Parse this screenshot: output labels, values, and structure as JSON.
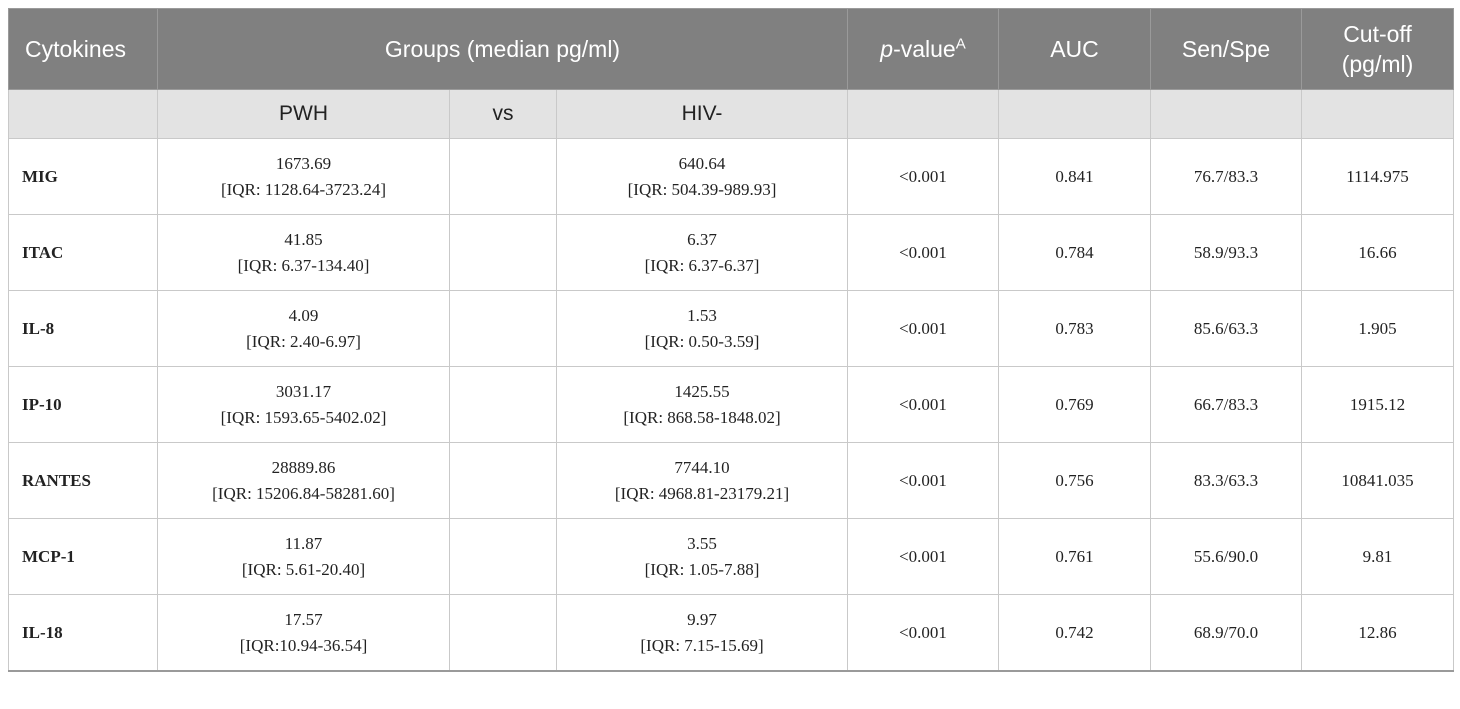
{
  "header": {
    "cytokines": "Cytokines",
    "groups": "Groups (median pg/ml)",
    "pvalue_italic": "p",
    "pvalue_rest": "-value",
    "pvalue_sup": "A",
    "auc": "AUC",
    "senspe": "Sen/Spe",
    "cutoff_line1": "Cut-off",
    "cutoff_line2": "(pg/ml)"
  },
  "subheader": {
    "pwh": "PWH",
    "vs": "vs",
    "hiv": "HIV-"
  },
  "rows": [
    {
      "name": "MIG",
      "pwh_median": "1673.69",
      "pwh_iqr": "[IQR: 1128.64-3723.24]",
      "hiv_median": "640.64",
      "hiv_iqr": "[IQR: 504.39-989.93]",
      "p": "<0.001",
      "auc": "0.841",
      "senspe": "76.7/83.3",
      "cutoff": "1114.975"
    },
    {
      "name": "ITAC",
      "pwh_median": "41.85",
      "pwh_iqr": "[IQR: 6.37-134.40]",
      "hiv_median": "6.37",
      "hiv_iqr": "[IQR: 6.37-6.37]",
      "p": "<0.001",
      "auc": "0.784",
      "senspe": "58.9/93.3",
      "cutoff": "16.66"
    },
    {
      "name": "IL-8",
      "pwh_median": "4.09",
      "pwh_iqr": "[IQR: 2.40-6.97]",
      "hiv_median": "1.53",
      "hiv_iqr": "[IQR: 0.50-3.59]",
      "p": "<0.001",
      "auc": "0.783",
      "senspe": "85.6/63.3",
      "cutoff": "1.905"
    },
    {
      "name": "IP-10",
      "pwh_median": "3031.17",
      "pwh_iqr": "[IQR: 1593.65-5402.02]",
      "hiv_median": "1425.55",
      "hiv_iqr": "[IQR: 868.58-1848.02]",
      "p": "<0.001",
      "auc": "0.769",
      "senspe": "66.7/83.3",
      "cutoff": "1915.12"
    },
    {
      "name": "RANTES",
      "pwh_median": "28889.86",
      "pwh_iqr": "[IQR: 15206.84-58281.60]",
      "hiv_median": "7744.10",
      "hiv_iqr": "[IQR: 4968.81-23179.21]",
      "p": "<0.001",
      "auc": "0.756",
      "senspe": "83.3/63.3",
      "cutoff": "10841.035"
    },
    {
      "name": "MCP-1",
      "pwh_median": "11.87",
      "pwh_iqr": "[IQR: 5.61-20.40]",
      "hiv_median": "3.55",
      "hiv_iqr": "[IQR: 1.05-7.88]",
      "p": "<0.001",
      "auc": "0.761",
      "senspe": "55.6/90.0",
      "cutoff": "9.81"
    },
    {
      "name": "IL-18",
      "pwh_median": "17.57",
      "pwh_iqr": "[IQR:10.94-36.54]",
      "hiv_median": "9.97",
      "hiv_iqr": "[IQR: 7.15-15.69]",
      "p": "<0.001",
      "auc": "0.742",
      "senspe": "68.9/70.0",
      "cutoff": "12.86"
    }
  ]
}
